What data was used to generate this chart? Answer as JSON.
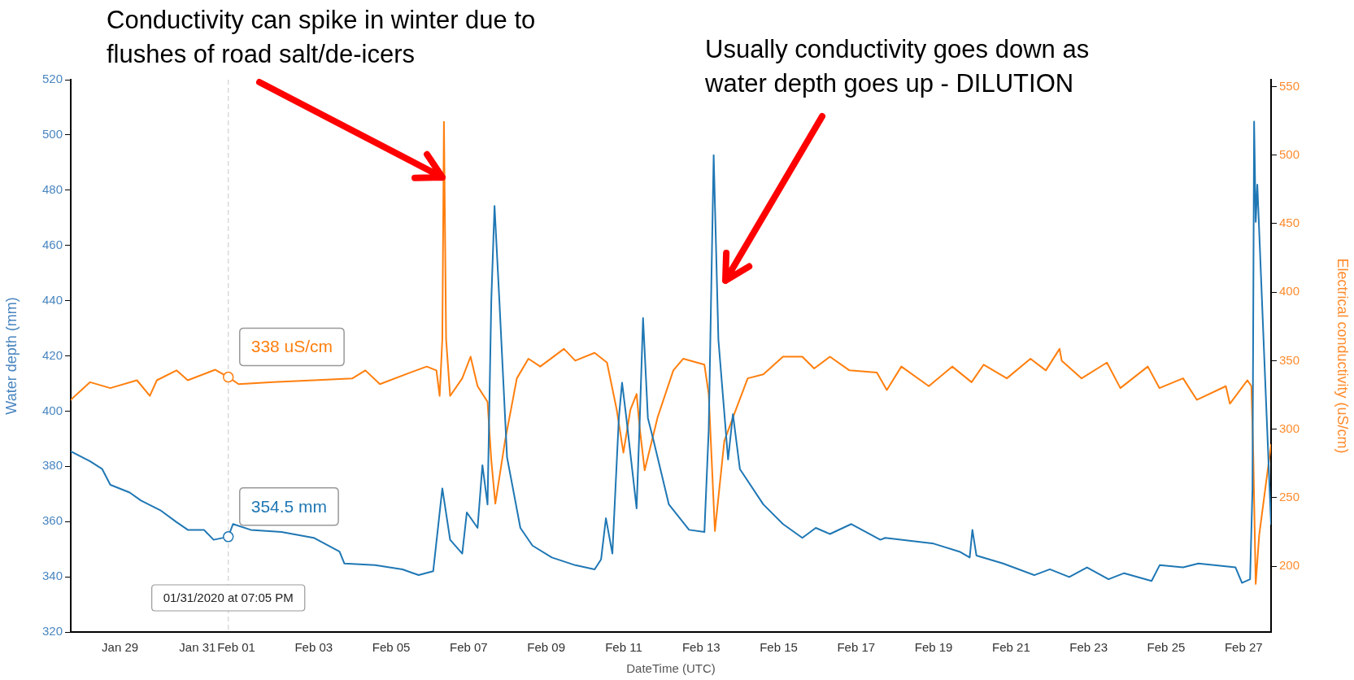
{
  "chart_data": {
    "type": "line",
    "xlabel": "DateTime (UTC)",
    "ylabel": "Water depth (mm)",
    "y2label": "Electrical conductivity (uS/cm)",
    "annotations": [
      "Conductivity can spike in winter due to flushes of road salt/de-icers",
      "Usually conductivity goes down as water depth goes up - DILUTION"
    ],
    "xlim": [
      "2020-01-27T17:30",
      "2020-02-27T17:00"
    ],
    "xticks": [
      {
        "value": "2020-01-29",
        "label": "Jan 29"
      },
      {
        "value": "2020-01-31",
        "label": "Jan 31"
      },
      {
        "value": "2020-02-01",
        "label": "Feb 01"
      },
      {
        "value": "2020-02-03",
        "label": "Feb 03"
      },
      {
        "value": "2020-02-05",
        "label": "Feb 05"
      },
      {
        "value": "2020-02-07",
        "label": "Feb 07"
      },
      {
        "value": "2020-02-09",
        "label": "Feb 09"
      },
      {
        "value": "2020-02-11",
        "label": "Feb 11"
      },
      {
        "value": "2020-02-13",
        "label": "Feb 13"
      },
      {
        "value": "2020-02-15",
        "label": "Feb 15"
      },
      {
        "value": "2020-02-17",
        "label": "Feb 17"
      },
      {
        "value": "2020-02-19",
        "label": "Feb 19"
      },
      {
        "value": "2020-02-21",
        "label": "Feb 21"
      },
      {
        "value": "2020-02-23",
        "label": "Feb 23"
      },
      {
        "value": "2020-02-25",
        "label": "Feb 25"
      },
      {
        "value": "2020-02-27",
        "label": "Feb 27"
      }
    ],
    "ylim": [
      320,
      520
    ],
    "yticks": [
      320,
      340,
      360,
      380,
      400,
      420,
      440,
      460,
      480,
      500,
      520
    ],
    "y2lim": [
      152,
      555
    ],
    "y2ticks": [
      200,
      250,
      300,
      350,
      400,
      450,
      500,
      550
    ],
    "grid": false,
    "legend": false,
    "marker": "none",
    "line_style": "solid",
    "ref_lines": [
      {
        "axis": "x",
        "value": "2020-01-31T19:05",
        "label": "01/31/2020 at 07:05 PM",
        "color": "#d9d9d9",
        "line_style": "dashed"
      }
    ],
    "series": [
      {
        "color": "#1f77b4",
        "x": [
          "2020-01-27T17:30",
          "2020-01-28T05:30",
          "2020-01-28T13:00",
          "2020-01-28T18:00",
          "2020-01-29T06:00",
          "2020-01-29T13:00",
          "2020-01-30T01:00",
          "2020-01-30T11:00",
          "2020-01-30T18:00",
          "2020-01-31T04:00",
          "2020-01-31T10:00",
          "2020-01-31T19:05",
          "2020-01-31T22:00",
          "2020-02-01T09:00",
          "2020-02-02T04:00",
          "2020-02-03T00:00",
          "2020-02-03T16:00",
          "2020-02-03T19:00",
          "2020-02-04T14:00",
          "2020-02-05T07:00",
          "2020-02-05T17:00",
          "2020-02-06T02:00",
          "2020-02-06T07:40",
          "2020-02-06T12:30",
          "2020-02-06T20:00",
          "2020-02-06T22:50",
          "2020-02-07T05:30",
          "2020-02-07T08:30",
          "2020-02-07T11:40",
          "2020-02-07T14:00",
          "2020-02-07T16:00",
          "2020-02-07T19:00",
          "2020-02-07T23:45",
          "2020-02-08T08:00",
          "2020-02-08T15:30",
          "2020-02-09T03:30",
          "2020-02-09T18:00",
          "2020-02-10T06:00",
          "2020-02-10T10:00",
          "2020-02-10T13:00",
          "2020-02-10T17:00",
          "2020-02-10T21:00",
          "2020-02-10T23:00",
          "2020-02-11T01:40",
          "2020-02-11T08:00",
          "2020-02-11T10:00",
          "2020-02-11T12:00",
          "2020-02-11T15:00",
          "2020-02-11T18:40",
          "2020-02-12T04:00",
          "2020-02-12T16:30",
          "2020-02-13T02:00",
          "2020-02-13T04:40",
          "2020-02-13T07:45",
          "2020-02-13T10:40",
          "2020-02-13T16:40",
          "2020-02-13T19:40",
          "2020-02-14T00:00",
          "2020-02-14T14:30",
          "2020-02-15T02:40",
          "2020-02-15T14:40",
          "2020-02-15T23:00",
          "2020-02-16T07:45",
          "2020-02-16T21:00",
          "2020-02-17T15:00",
          "2020-02-17T18:00",
          "2020-02-19T00:00",
          "2020-02-19T16:00",
          "2020-02-19T22:20",
          "2020-02-20T00:00",
          "2020-02-20T02:30",
          "2020-02-20T19:00",
          "2020-02-21T14:20",
          "2020-02-22T00:00",
          "2020-02-22T12:00",
          "2020-02-22T23:00",
          "2020-02-23T12:20",
          "2020-02-23T22:00",
          "2020-02-24T15:00",
          "2020-02-24T20:00",
          "2020-02-25T10:30",
          "2020-02-25T20:00",
          "2020-02-26T19:00",
          "2020-02-26T23:00",
          "2020-02-27T04:00",
          "2020-02-27T05:30",
          "2020-02-27T06:30",
          "2020-02-27T07:30",
          "2020-02-27T08:30",
          "2020-02-27T13:20",
          "2020-02-27T17:00"
        ],
        "values": [
          385.4,
          381.8,
          379,
          373.3,
          370.5,
          367.6,
          364.1,
          359.8,
          357,
          357,
          353.4,
          354.5,
          359.1,
          357,
          356.2,
          354.1,
          349.1,
          344.8,
          344.2,
          342.7,
          340.6,
          342,
          372,
          353.4,
          348.4,
          363.3,
          357.7,
          380.4,
          366.2,
          440,
          474.3,
          440,
          383.3,
          357.7,
          351.3,
          347,
          344.2,
          342.7,
          346.3,
          361.2,
          348.4,
          397.5,
          410.3,
          397.5,
          364.8,
          397.5,
          433.7,
          397.5,
          388.9,
          366.2,
          357,
          356.2,
          393.2,
          492.7,
          425.9,
          382.5,
          398.9,
          379,
          366.2,
          359.1,
          354.1,
          357.7,
          355.5,
          359.1,
          353.4,
          354.1,
          352,
          349.1,
          347,
          357,
          347.7,
          344.8,
          340.6,
          342.7,
          339.9,
          343.4,
          339.1,
          341.3,
          338.5,
          344.2,
          343.4,
          344.8,
          343.4,
          337.8,
          339.1,
          371.9,
          504.8,
          468.5,
          482,
          411.7,
          359.1
        ],
        "value_labels": [
          null,
          null,
          null,
          null,
          null,
          null,
          null,
          null,
          null,
          null,
          null,
          "354.5 mm",
          null,
          null,
          null,
          null,
          null,
          null,
          null,
          null,
          null,
          null,
          null,
          null,
          null,
          null,
          null,
          null,
          null,
          null,
          null,
          null,
          null,
          null,
          null,
          null,
          null,
          null,
          null,
          null,
          null,
          null,
          null,
          null,
          null,
          null,
          null,
          null,
          null,
          null,
          null,
          null,
          null,
          null,
          null,
          null,
          null,
          null,
          null,
          null,
          null,
          null,
          null,
          null,
          null,
          null,
          null,
          null,
          null,
          null,
          null,
          null,
          null,
          null,
          null,
          null,
          null,
          null,
          null,
          null,
          null,
          null,
          null,
          null,
          null,
          null,
          null,
          null,
          null,
          null,
          null
        ]
      },
      {
        "color": "#ff7f0e",
        "axis": "y2",
        "x": [
          "2020-01-27T17:30",
          "2020-01-28T05:30",
          "2020-01-28T18:00",
          "2020-01-29T10:30",
          "2020-01-29T18:30",
          "2020-01-29T22:50",
          "2020-01-30T11:00",
          "2020-01-30T18:00",
          "2020-01-31T11:00",
          "2020-01-31T19:05",
          "2020-02-01T01:30",
          "2020-02-01T23:00",
          "2020-02-03T00:00",
          "2020-02-04T00:00",
          "2020-02-04T08:00",
          "2020-02-04T17:00",
          "2020-02-05T12:00",
          "2020-02-05T22:00",
          "2020-02-06T04:00",
          "2020-02-06T06:00",
          "2020-02-06T07:40",
          "2020-02-06T08:40",
          "2020-02-06T10:00",
          "2020-02-06T12:30",
          "2020-02-06T20:00",
          "2020-02-07T01:10",
          "2020-02-07T05:30",
          "2020-02-07T11:40",
          "2020-02-07T14:00",
          "2020-02-07T16:30",
          "2020-02-07T22:30",
          "2020-02-08T05:50",
          "2020-02-08T13:00",
          "2020-02-08T20:20",
          "2020-02-09T11:00",
          "2020-02-09T18:00",
          "2020-02-10T06:00",
          "2020-02-10T13:40",
          "2020-02-10T19:40",
          "2020-02-10T23:50",
          "2020-02-11T04:10",
          "2020-02-11T08:00",
          "2020-02-11T10:00",
          "2020-02-11T13:00",
          "2020-02-11T21:00",
          "2020-02-12T06:45",
          "2020-02-12T12:50",
          "2020-02-13T02:00",
          "2020-02-13T04:40",
          "2020-02-13T08:30",
          "2020-02-13T14:20",
          "2020-02-13T21:30",
          "2020-02-14T04:50",
          "2020-02-14T14:30",
          "2020-02-15T02:40",
          "2020-02-15T14:40",
          "2020-02-15T22:00",
          "2020-02-16T07:45",
          "2020-02-16T19:50",
          "2020-02-17T12:50",
          "2020-02-17T19:00",
          "2020-02-18T04:00",
          "2020-02-18T21:00",
          "2020-02-19T11:30",
          "2020-02-19T23:30",
          "2020-02-20T07:00",
          "2020-02-20T21:20",
          "2020-02-21T12:00",
          "2020-02-21T21:30",
          "2020-02-22T06:00",
          "2020-02-22T07:20",
          "2020-02-22T19:40",
          "2020-02-23T11:20",
          "2020-02-23T19:40",
          "2020-02-24T12:40",
          "2020-02-24T19:50",
          "2020-02-25T10:30",
          "2020-02-25T19:00",
          "2020-02-26T13:00",
          "2020-02-26T15:30",
          "2020-02-27T02:20",
          "2020-02-27T04:50",
          "2020-02-27T06:00",
          "2020-02-27T07:30",
          "2020-02-27T09:40",
          "2020-02-27T17:00"
        ],
        "values": [
          321.4,
          334.3,
          330,
          335.7,
          324.3,
          335.7,
          342.9,
          335.7,
          343.4,
          338,
          332.9,
          334.3,
          335.7,
          337.1,
          342.9,
          332.9,
          341.4,
          345.7,
          342.9,
          324.3,
          365.7,
          524.3,
          365.7,
          324.3,
          337.1,
          352.9,
          331.4,
          320,
          277.2,
          245.7,
          291.4,
          337.1,
          351.4,
          345.7,
          358.6,
          350,
          355.7,
          348.6,
          314.3,
          282.9,
          314.3,
          325.7,
          300,
          270,
          308.6,
          342.9,
          351.4,
          347.1,
          325.7,
          225.7,
          291.4,
          314.3,
          337.1,
          340,
          352.9,
          352.9,
          344.3,
          352.9,
          342.9,
          341.4,
          328.6,
          345.7,
          331.4,
          345.7,
          334.3,
          347.1,
          337.1,
          351.4,
          342.9,
          358.6,
          350,
          337.1,
          348.6,
          330,
          345.7,
          330,
          337.1,
          321.4,
          331.4,
          318.6,
          335.7,
          331.4,
          280,
          187.1,
          222.9,
          288.6
        ],
        "value_labels": [
          null,
          null,
          null,
          null,
          null,
          null,
          null,
          null,
          null,
          "338 uS/cm",
          null,
          null,
          null,
          null,
          null,
          null,
          null,
          null,
          null,
          null,
          null,
          null,
          null,
          null,
          null,
          null,
          null,
          null,
          null,
          null,
          null,
          null,
          null,
          null,
          null,
          null,
          null,
          null,
          null,
          null,
          null,
          null,
          null,
          null,
          null,
          null,
          null,
          null,
          null,
          null,
          null,
          null,
          null,
          null,
          null,
          null,
          null,
          null,
          null,
          null,
          null,
          null,
          null,
          null,
          null,
          null,
          null,
          null,
          null,
          null,
          null,
          null,
          null,
          null,
          null,
          null,
          null,
          null,
          null,
          null,
          null,
          null,
          null,
          null,
          null,
          null
        ]
      }
    ]
  }
}
